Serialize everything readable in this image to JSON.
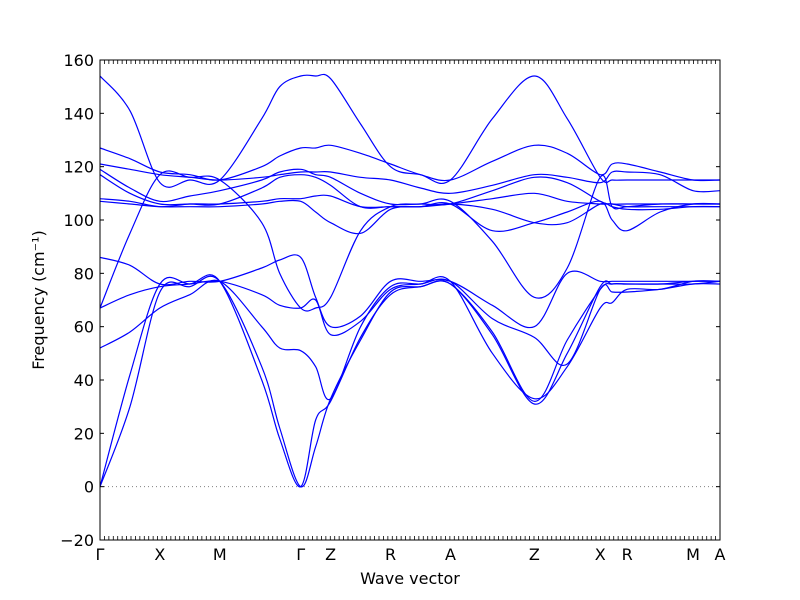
{
  "chart_data": {
    "type": "line",
    "title": "",
    "xlabel": "Wave vector",
    "ylabel": "Frequency (cm⁻¹)",
    "ylim": [
      -20,
      160
    ],
    "yticks": [
      -20,
      0,
      20,
      40,
      60,
      80,
      100,
      120,
      140,
      160
    ],
    "grid": false,
    "legend": "none",
    "line_color": "#0000ff",
    "zero_line": {
      "y": 0,
      "style": "dotted",
      "color": "#808080"
    },
    "xlim": [
      0,
      10.35
    ],
    "x_ticks": [
      {
        "label": "Γ",
        "x": 0
      },
      {
        "label": "X",
        "x": 1
      },
      {
        "label": "M",
        "x": 2
      },
      {
        "label": "Γ",
        "x": 3.35
      },
      {
        "label": "Z",
        "x": 3.85
      },
      {
        "label": "R",
        "x": 4.85
      },
      {
        "label": "A",
        "x": 5.85
      },
      {
        "label": "Z",
        "x": 7.25
      },
      {
        "label": "X",
        "x": 8.35
      },
      {
        "label": "R",
        "x": 8.8
      },
      {
        "label": "M",
        "x": 9.9
      },
      {
        "label": "A",
        "x": 10.35
      }
    ],
    "series": [
      {
        "x": [
          0,
          0.5,
          1.0,
          1.5,
          2.0,
          2.7,
          3.0,
          3.35,
          3.6,
          3.85,
          4.35,
          4.85,
          5.35,
          5.85,
          6.55,
          7.25,
          7.8,
          8.35,
          8.55,
          8.8,
          9.35,
          9.9,
          10.35
        ],
        "values": [
          154,
          141,
          114,
          115,
          115,
          138,
          150,
          154,
          154,
          153,
          136,
          120,
          117,
          115,
          138,
          154,
          138,
          116,
          115,
          115,
          115,
          115,
          115
        ]
      },
      {
        "x": [
          0,
          0.5,
          1.0,
          1.5,
          2.0,
          2.7,
          3.0,
          3.35,
          3.6,
          3.85,
          4.35,
          4.85,
          5.35,
          5.85,
          6.55,
          7.25,
          7.8,
          8.35,
          8.55,
          8.8,
          9.35,
          9.9,
          10.35
        ],
        "values": [
          127,
          123,
          118,
          117,
          115,
          120,
          124,
          127,
          127,
          128,
          125,
          121,
          117,
          115,
          122,
          128,
          125,
          117,
          121,
          121,
          118,
          115,
          115
        ]
      },
      {
        "x": [
          0,
          0.5,
          1.0,
          1.5,
          2.0,
          2.7,
          3.0,
          3.35,
          3.6,
          3.85,
          4.35,
          4.85,
          5.35,
          5.85,
          6.55,
          7.25,
          7.8,
          8.35,
          8.55,
          8.8,
          9.35,
          9.9,
          10.35
        ],
        "values": [
          121,
          119,
          117,
          116,
          115,
          116,
          117,
          118,
          118,
          118,
          116,
          115,
          112,
          110,
          113,
          117,
          116,
          114,
          118,
          118,
          117,
          111,
          111
        ]
      },
      {
        "x": [
          0,
          0.5,
          1.0,
          1.5,
          2.0,
          2.7,
          3.0,
          3.35,
          3.6,
          3.85,
          4.35,
          4.85,
          5.35,
          5.85,
          6.55,
          7.25,
          7.8,
          8.35,
          8.55,
          8.8,
          9.35,
          9.9,
          10.35
        ],
        "values": [
          119,
          112,
          107,
          109,
          111,
          115,
          118,
          119,
          117,
          116,
          110,
          106,
          106,
          106,
          111,
          116,
          114,
          107,
          106,
          106,
          106,
          106,
          106
        ]
      },
      {
        "x": [
          0,
          0.5,
          1.0,
          1.5,
          2.0,
          2.7,
          3.0,
          3.35,
          3.6,
          3.85,
          4.35,
          4.85,
          5.35,
          5.85,
          6.55,
          7.25,
          7.8,
          8.35,
          8.55,
          8.8,
          9.35,
          9.9,
          10.35
        ],
        "values": [
          117,
          110,
          106,
          106,
          106,
          112,
          116,
          117,
          116,
          113,
          105,
          105,
          105,
          106,
          108,
          110,
          107,
          106,
          106,
          105,
          105,
          105,
          105
        ]
      },
      {
        "x": [
          0,
          0.5,
          1.0,
          1.5,
          2.0,
          2.7,
          3.0,
          3.35,
          3.6,
          3.85,
          4.35,
          4.85,
          5.35,
          5.85,
          6.55,
          7.25,
          7.8,
          8.35,
          8.55,
          8.8,
          9.35,
          9.9,
          10.35
        ],
        "values": [
          108,
          107,
          105,
          106,
          106,
          107,
          108,
          108,
          109,
          109,
          105,
          105,
          105,
          106,
          104,
          99,
          99,
          106,
          105,
          104,
          104,
          105,
          105
        ]
      },
      {
        "x": [
          0,
          0.5,
          1.0,
          1.5,
          2.0,
          2.7,
          3.0,
          3.35,
          3.6,
          3.85,
          4.35,
          4.85,
          5.35,
          5.85,
          6.55,
          7.25,
          7.8,
          8.35,
          8.55,
          8.8,
          9.35,
          9.9,
          10.35
        ],
        "values": [
          107,
          106,
          105,
          105,
          105,
          106,
          107,
          107,
          103,
          99,
          95,
          104,
          105,
          106,
          96,
          99,
          103,
          107,
          100,
          96,
          103,
          106,
          106
        ]
      },
      {
        "x": [
          0,
          0.5,
          1.0,
          1.5,
          2.0,
          2.7,
          3.0,
          3.35,
          3.6,
          3.85,
          4.35,
          4.85,
          5.35,
          5.85,
          6.55,
          7.25,
          7.8,
          8.35,
          8.55,
          8.8,
          9.35,
          9.9,
          10.35
        ],
        "values": [
          67,
          95,
          117,
          116,
          115,
          99,
          80,
          67,
          67,
          71,
          96,
          105,
          106,
          107,
          92,
          71,
          82,
          116,
          105,
          105,
          106,
          106,
          106
        ]
      },
      {
        "x": [
          0,
          0.5,
          1.0,
          1.5,
          2.0,
          2.7,
          3.0,
          3.35,
          3.6,
          3.85,
          4.35,
          4.85,
          5.35,
          5.85,
          6.55,
          7.25,
          7.8,
          8.35,
          8.55,
          8.8,
          9.35,
          9.9,
          10.35
        ],
        "values": [
          86,
          83,
          76,
          77,
          77,
          82,
          85,
          86,
          71,
          60,
          64,
          77,
          77,
          77,
          68,
          60,
          80,
          77,
          77,
          77,
          77,
          77,
          77
        ]
      },
      {
        "x": [
          0,
          0.5,
          1.0,
          1.5,
          2.0,
          2.7,
          3.0,
          3.35,
          3.6,
          3.85,
          4.35,
          4.85,
          5.35,
          5.85,
          6.55,
          7.25,
          7.8,
          8.35,
          8.55,
          8.8,
          9.35,
          9.9,
          10.35
        ],
        "values": [
          67,
          72,
          75,
          76,
          77,
          72,
          68,
          67,
          70,
          57,
          62,
          74,
          76,
          77,
          63,
          56,
          46,
          74,
          73,
          73,
          74,
          76,
          76
        ]
      },
      {
        "x": [
          0,
          0.5,
          1.0,
          1.5,
          2.0,
          2.7,
          3.0,
          3.35,
          3.6,
          3.85,
          4.35,
          4.85,
          5.35,
          5.85,
          6.55,
          7.25,
          7.8,
          8.35,
          8.55,
          8.8,
          9.35,
          9.9,
          10.35
        ],
        "values": [
          52,
          58,
          67,
          72,
          77,
          60,
          52,
          51,
          45,
          33,
          60,
          75,
          76,
          77,
          50,
          33,
          45,
          67,
          69,
          74,
          74,
          77,
          77
        ]
      },
      {
        "x": [
          0,
          0.5,
          1.0,
          1.5,
          2.0,
          2.7,
          3.0,
          3.35,
          3.6,
          3.85,
          4.35,
          4.85,
          5.35,
          5.85,
          6.55,
          7.25,
          7.8,
          8.35,
          8.55,
          8.8,
          9.35,
          9.9,
          10.35
        ],
        "values": [
          0,
          42,
          76,
          76,
          77,
          40,
          18,
          0,
          25,
          32,
          56,
          72,
          75,
          76,
          58,
          32,
          55,
          74,
          76,
          76,
          76,
          76,
          77
        ]
      },
      {
        "x": [
          0,
          0.5,
          1.0,
          1.5,
          2.0,
          2.7,
          3.0,
          3.35,
          3.6,
          3.85,
          4.35,
          4.85,
          5.35,
          5.85,
          6.55,
          7.25,
          7.8,
          8.35,
          8.55,
          8.8,
          9.35,
          9.9,
          10.35
        ],
        "values": [
          0,
          30,
          73,
          75,
          77,
          45,
          22,
          0,
          15,
          33,
          55,
          73,
          75,
          76,
          57,
          31,
          50,
          75,
          76,
          76,
          76,
          77,
          77
        ]
      }
    ]
  }
}
